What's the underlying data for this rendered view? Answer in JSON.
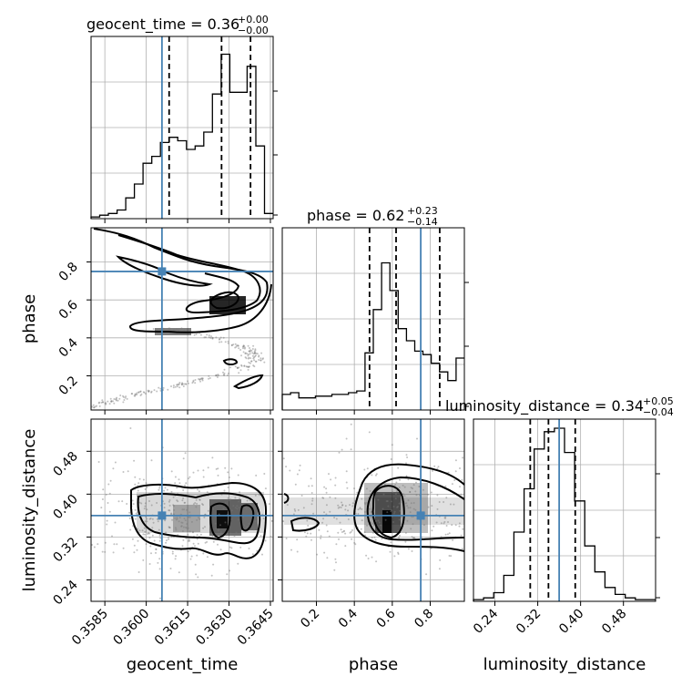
{
  "figure": {
    "type": "corner_plot",
    "truth_color": "#4682b4",
    "hist_color": "#000000"
  },
  "chart_data": {
    "type": "heatmap",
    "parameters": [
      {
        "name": "geocent_time",
        "range": [
          0.358,
          0.3646
        ],
        "ticks": [
          "0.3585",
          "0.3600",
          "0.3615",
          "0.3630",
          "0.3645"
        ],
        "tick_values": [
          0.3585,
          0.36,
          0.3615,
          0.363,
          0.3645
        ],
        "truth": 0.36057,
        "quantiles": [
          0.36083,
          0.36273,
          0.36378
        ],
        "title_base": "geocent_time = 0.36",
        "title_plus": "+0.00",
        "title_minus": "−0.00",
        "hist_y": [
          0.01,
          0.02,
          0.03,
          0.05,
          0.12,
          0.2,
          0.32,
          0.36,
          0.44,
          0.47,
          0.45,
          0.4,
          0.42,
          0.5,
          0.72,
          0.95,
          0.73,
          0.73,
          0.88,
          0.42,
          0.03
        ]
      },
      {
        "name": "phase",
        "range": [
          0.02,
          0.98
        ],
        "ticks": [
          "0.2",
          "0.4",
          "0.6",
          "0.8"
        ],
        "tick_values": [
          0.2,
          0.4,
          0.6,
          0.8
        ],
        "truth": 0.75,
        "quantiles": [
          0.48,
          0.62,
          0.85
        ],
        "title_base": "phase = 0.62",
        "title_plus": "+0.23",
        "title_minus": "−0.14",
        "hist_y": [
          0.09,
          0.1,
          0.07,
          0.07,
          0.08,
          0.08,
          0.09,
          0.09,
          0.1,
          0.11,
          0.33,
          0.58,
          0.85,
          0.69,
          0.47,
          0.4,
          0.34,
          0.32,
          0.27,
          0.22,
          0.17,
          0.3
        ]
      },
      {
        "name": "luminosity_distance",
        "range": [
          0.2,
          0.54
        ],
        "ticks": [
          "0.24",
          "0.32",
          "0.40",
          "0.48"
        ],
        "tick_values": [
          0.24,
          0.32,
          0.4,
          0.48
        ],
        "truth": 0.36,
        "quantiles": [
          0.306,
          0.34,
          0.39
        ],
        "title_base": "luminosity_distance = 0.34",
        "title_plus": "+0.05",
        "title_minus": "−0.04",
        "hist_y": [
          0.01,
          0.02,
          0.05,
          0.15,
          0.4,
          0.65,
          0.88,
          0.98,
          1.0,
          0.86,
          0.58,
          0.32,
          0.17,
          0.08,
          0.04,
          0.02,
          0.01,
          0.01
        ]
      }
    ],
    "panels_2d": [
      {
        "x": "geocent_time",
        "y": "phase"
      },
      {
        "x": "geocent_time",
        "y": "luminosity_distance"
      },
      {
        "x": "phase",
        "y": "luminosity_distance"
      }
    ],
    "grid": true
  }
}
